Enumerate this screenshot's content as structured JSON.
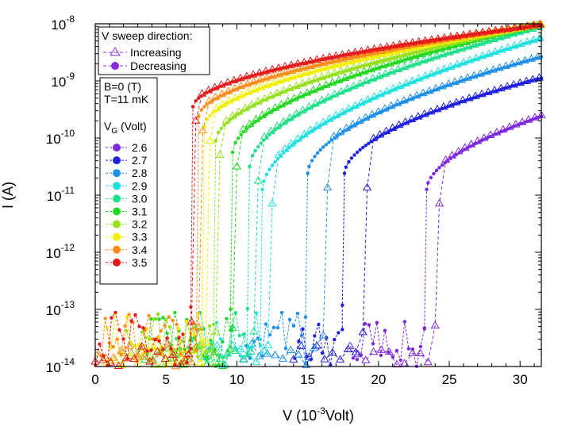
{
  "chart_data": {
    "type": "scatter",
    "title": "",
    "xlabel": "V (10",
    "xlabel_exponent": "-3",
    "xlabel_suffix": "Volt)",
    "ylabel": "I (A)",
    "xlim": [
      0,
      31.5
    ],
    "ylim_log10": [
      -14,
      -8
    ],
    "x_ticks": [
      0,
      5,
      10,
      15,
      20,
      25,
      30
    ],
    "x_tick_labels": [
      "0",
      "5",
      "10",
      "15",
      "20",
      "25",
      "30"
    ],
    "y_ticks_log10": [
      -14,
      -13,
      -12,
      -11,
      -10,
      -9,
      -8
    ],
    "y_tick_labels": [
      {
        "base": "10",
        "exp": "-14"
      },
      {
        "base": "10",
        "exp": "-13"
      },
      {
        "base": "10",
        "exp": "-12"
      },
      {
        "base": "10",
        "exp": "-11"
      },
      {
        "base": "10",
        "exp": "-10"
      },
      {
        "base": "10",
        "exp": "-9"
      },
      {
        "base": "10",
        "exp": "-8"
      }
    ],
    "sweep_legend": {
      "title": "V sweep direction:",
      "increasing": "Increasing",
      "decreasing": "Decreasing",
      "color": "#8a2be2"
    },
    "conditions": [
      "B=0 (T)",
      "T=11 mK"
    ],
    "vg_legend_title": "V",
    "vg_legend_title_sub": "G",
    "vg_legend_title_suffix": " (Volt)",
    "series": [
      {
        "name": "2.6",
        "color": "#7e28e0",
        "v_on_inc": 23.4,
        "v_on_dec": 24.3,
        "i_on_log": -10.9,
        "i_end_log": -9.62,
        "noise_start": 18.0
      },
      {
        "name": "2.7",
        "color": "#1f1fe0",
        "v_on_inc": 17.6,
        "v_on_dec": 19.2,
        "i_on_log": -10.62,
        "i_end_log": -8.95,
        "noise_start": 14.0
      },
      {
        "name": "2.8",
        "color": "#1f8fe8",
        "v_on_inc": 15.0,
        "v_on_dec": 16.4,
        "i_on_log": -10.62,
        "i_end_log": -8.58,
        "noise_start": 10.5
      },
      {
        "name": "2.9",
        "color": "#1ee0e0",
        "v_on_inc": 11.8,
        "v_on_dec": 12.5,
        "i_on_log": -10.9,
        "i_end_log": -8.26,
        "noise_start": 7.5
      },
      {
        "name": "3.0",
        "color": "#1ee08a",
        "v_on_inc": 10.9,
        "v_on_dec": 11.5,
        "i_on_log": -10.5,
        "i_end_log": -8.06,
        "noise_start": 5.5
      },
      {
        "name": "3.1",
        "color": "#22d822",
        "v_on_inc": 9.7,
        "v_on_dec": 10.0,
        "i_on_log": -10.25,
        "i_end_log": -8.02,
        "noise_start": 3.5
      },
      {
        "name": "3.2",
        "color": "#96e01e",
        "v_on_inc": 8.5,
        "v_on_dec": 8.8,
        "i_on_log": -10.05,
        "i_end_log": -8.02,
        "noise_start": 2.0
      },
      {
        "name": "3.3",
        "color": "#f0f000",
        "v_on_inc": 7.7,
        "v_on_dec": 8.1,
        "i_on_log": -9.8,
        "i_end_log": -8.02,
        "noise_start": 0.8
      },
      {
        "name": "3.4",
        "color": "#ff8c1a",
        "v_on_inc": 7.3,
        "v_on_dec": 7.6,
        "i_on_log": -9.62,
        "i_end_log": -8.02,
        "noise_start": 0.2
      },
      {
        "name": "3.5",
        "color": "#e41a1a",
        "v_on_inc": 6.9,
        "v_on_dec": 7.1,
        "i_on_log": -9.45,
        "i_end_log": -8.02,
        "noise_start": 0.0
      }
    ]
  }
}
